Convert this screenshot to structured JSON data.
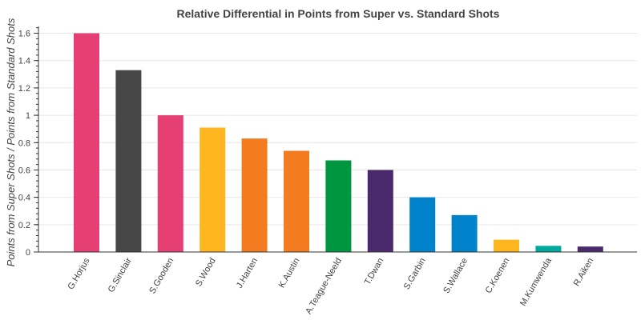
{
  "chart_data": {
    "type": "bar",
    "title": "Relative Differential in Points from Super vs. Standard Shots",
    "xlabel": "",
    "ylabel": "Points from Super Shots / Points from Standard Shots",
    "ylim": [
      0,
      1.65
    ],
    "yticks": [
      0,
      0.2,
      0.4,
      0.6,
      0.8,
      1,
      1.2,
      1.4,
      1.6
    ],
    "ytick_labels": [
      "0",
      "0.2",
      "0.4",
      "0.6",
      "0.8",
      "1",
      "1.2",
      "1.4",
      "1.6"
    ],
    "grid": true,
    "categories": [
      "G.Horjus",
      "G.Sinclair",
      "S.Gooden",
      "S.Wood",
      "J.Harten",
      "K.Austin",
      "A.Teague-Neeld",
      "T.Dwan",
      "S.Garbin",
      "S.Wallace",
      "C.Koenen",
      "M.Kumwenda",
      "R.Aiken"
    ],
    "values": [
      1.6,
      1.33,
      1.0,
      0.91,
      0.83,
      0.74,
      0.67,
      0.6,
      0.4,
      0.27,
      0.09,
      0.045,
      0.04
    ],
    "colors": [
      "#E63F73",
      "#474747",
      "#E63F73",
      "#FDB61F",
      "#F47B20",
      "#F47B20",
      "#009640",
      "#4A2A6B",
      "#0083CA",
      "#0083CA",
      "#FDB61F",
      "#00A99D",
      "#4A2A6B"
    ]
  }
}
